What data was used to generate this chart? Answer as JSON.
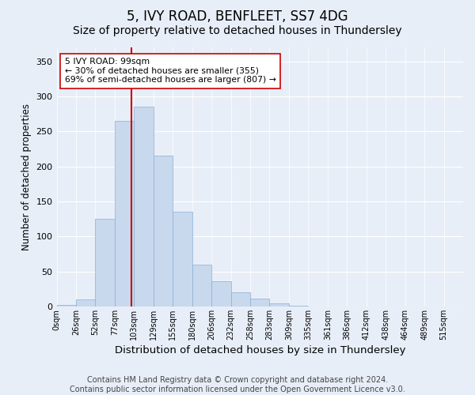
{
  "title": "5, IVY ROAD, BENFLEET, SS7 4DG",
  "subtitle": "Size of property relative to detached houses in Thundersley",
  "xlabel": "Distribution of detached houses by size in Thundersley",
  "ylabel": "Number of detached properties",
  "bar_heights": [
    2,
    10,
    125,
    265,
    285,
    215,
    135,
    60,
    36,
    20,
    11,
    4,
    1,
    0,
    0,
    0,
    0,
    0,
    0,
    0,
    0
  ],
  "bin_labels": [
    "0sqm",
    "26sqm",
    "52sqm",
    "77sqm",
    "103sqm",
    "129sqm",
    "155sqm",
    "180sqm",
    "206sqm",
    "232sqm",
    "258sqm",
    "283sqm",
    "309sqm",
    "335sqm",
    "361sqm",
    "386sqm",
    "412sqm",
    "438sqm",
    "464sqm",
    "489sqm",
    "515sqm"
  ],
  "bar_color": "#c8d9ed",
  "bar_edge_color": "#8aaed4",
  "vline_color": "#cc0000",
  "annotation_text": "5 IVY ROAD: 99sqm\n← 30% of detached houses are smaller (355)\n69% of semi-detached houses are larger (807) →",
  "annotation_box_color": "#ffffff",
  "annotation_box_edgecolor": "#cc0000",
  "ylim": [
    0,
    370
  ],
  "yticks": [
    0,
    50,
    100,
    150,
    200,
    250,
    300,
    350
  ],
  "background_color": "#e8eef8",
  "plot_background": "#e8eef8",
  "footer": "Contains HM Land Registry data © Crown copyright and database right 2024.\nContains public sector information licensed under the Open Government Licence v3.0.",
  "title_fontsize": 12,
  "subtitle_fontsize": 10,
  "xlabel_fontsize": 9.5,
  "ylabel_fontsize": 8.5,
  "footer_fontsize": 7
}
